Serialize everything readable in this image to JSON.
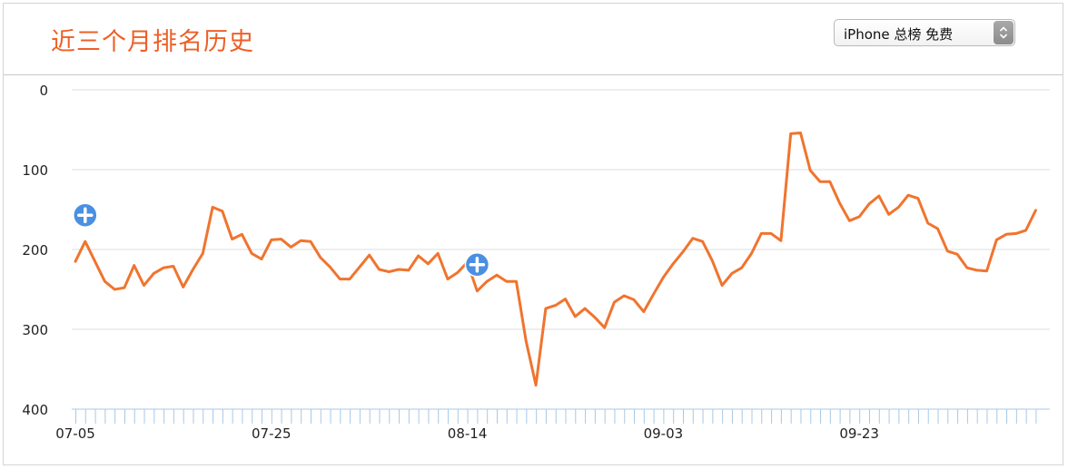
{
  "header": {
    "title": "近三个月排名历史",
    "selector": {
      "selected": "iPhone 总榜 免费",
      "icon": "updown-chevron-icon"
    }
  },
  "colors": {
    "title": "#ee5f26",
    "line": "#f0742e",
    "marker": "#4a90e2",
    "grid": "#dddddd",
    "tick": "#a9c8e4"
  },
  "markers": [
    {
      "icon": "plus-circle-icon",
      "x_index": 1
    },
    {
      "icon": "plus-circle-icon",
      "x_index": 41
    }
  ],
  "chart_data": {
    "type": "line",
    "title": "近三个月排名历史",
    "xlabel": "",
    "ylabel": "",
    "ylim": [
      0,
      400
    ],
    "y_inverted": true,
    "y_ticks": [
      0,
      100,
      200,
      300,
      400
    ],
    "x_tick_labels": [
      {
        "index": 0,
        "label": "07-05"
      },
      {
        "index": 20,
        "label": "07-25"
      },
      {
        "index": 40,
        "label": "08-14"
      },
      {
        "index": 60,
        "label": "09-03"
      },
      {
        "index": 80,
        "label": "09-23"
      }
    ],
    "grid": true,
    "legend": "none",
    "series": [
      {
        "values": [
          215,
          190,
          215,
          240,
          250,
          248,
          220,
          245,
          230,
          223,
          221,
          247,
          225,
          205,
          147,
          152,
          187,
          181,
          205,
          212,
          188,
          187,
          197,
          189,
          190,
          210,
          222,
          237,
          237,
          222,
          207,
          225,
          228,
          225,
          226,
          208,
          218,
          205,
          237,
          229,
          216,
          252,
          240,
          232,
          240,
          240,
          315,
          370,
          274,
          270,
          262,
          284,
          274,
          285,
          298,
          266,
          258,
          263,
          278,
          256,
          235,
          218,
          203,
          186,
          190,
          214,
          245,
          230,
          223,
          205,
          180,
          180,
          189,
          55,
          54,
          101,
          115,
          115,
          142,
          164,
          159,
          143,
          133,
          156,
          147,
          132,
          136,
          167,
          174,
          202,
          206,
          223,
          226,
          227,
          188,
          181,
          180,
          176,
          151
        ]
      }
    ]
  }
}
